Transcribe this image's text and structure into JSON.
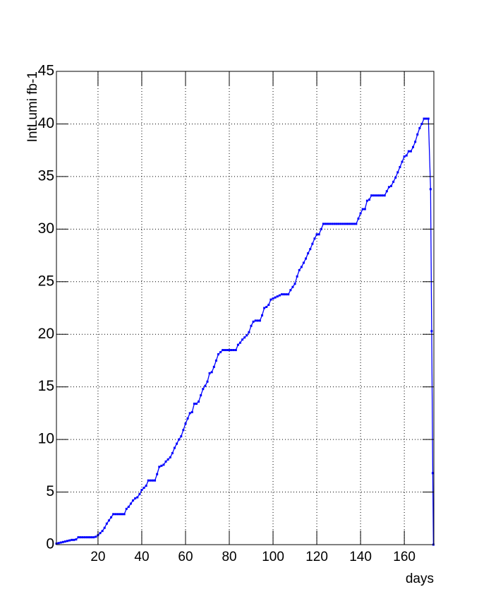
{
  "chart_data": {
    "type": "line",
    "x_label": "days",
    "y_label": "IntLumi fb-1",
    "xlim": [
      1,
      173.5
    ],
    "ylim": [
      0,
      45
    ],
    "xticks": [
      20,
      40,
      60,
      80,
      100,
      120,
      140,
      160
    ],
    "yticks": [
      0,
      5,
      10,
      15,
      20,
      25,
      30,
      35,
      40,
      45
    ],
    "grid": true,
    "series": [
      {
        "color": "#0000ff",
        "x": [
          1,
          2,
          3,
          4,
          5,
          6,
          7,
          8,
          9,
          10,
          11,
          12,
          13,
          14,
          15,
          16,
          17,
          18,
          19,
          20,
          21,
          22,
          23,
          24,
          25,
          26,
          27,
          28,
          29,
          30,
          31,
          32,
          33,
          34,
          35,
          36,
          37,
          38,
          39,
          40,
          41,
          42,
          43,
          44,
          45,
          46,
          47,
          48,
          49,
          50,
          51,
          52,
          53,
          54,
          55,
          56,
          57,
          58,
          59,
          60,
          61,
          62,
          63,
          64,
          65,
          66,
          67,
          68,
          69,
          70,
          71,
          72,
          73,
          74,
          75,
          76,
          77,
          78,
          79,
          80,
          81,
          82,
          83,
          84,
          85,
          86,
          87,
          88,
          89,
          90,
          91,
          92,
          93,
          94,
          95,
          96,
          97,
          98,
          99,
          100,
          101,
          102,
          103,
          104,
          105,
          106,
          107,
          108,
          109,
          110,
          111,
          112,
          113,
          114,
          115,
          116,
          117,
          118,
          119,
          120,
          121,
          122,
          123,
          124,
          125,
          126,
          127,
          128,
          129,
          130,
          131,
          132,
          133,
          134,
          135,
          136,
          137,
          138,
          139,
          140,
          141,
          142,
          143,
          144,
          145,
          146,
          147,
          148,
          149,
          150,
          151,
          152,
          153,
          154,
          155,
          156,
          157,
          158,
          159,
          160,
          161,
          162,
          163,
          164,
          165,
          166,
          167,
          168,
          169,
          170,
          171,
          172,
          172.5,
          173,
          173.3
        ],
        "values": [
          0.1,
          0.15,
          0.2,
          0.25,
          0.3,
          0.35,
          0.4,
          0.45,
          0.45,
          0.5,
          0.7,
          0.7,
          0.7,
          0.7,
          0.7,
          0.7,
          0.7,
          0.7,
          0.75,
          0.9,
          1.1,
          1.3,
          1.6,
          2.0,
          2.3,
          2.6,
          2.9,
          2.9,
          2.9,
          2.9,
          2.9,
          2.9,
          3.4,
          3.6,
          3.9,
          4.2,
          4.4,
          4.5,
          4.8,
          5.2,
          5.4,
          5.6,
          6.1,
          6.1,
          6.1,
          6.1,
          6.7,
          7.4,
          7.5,
          7.6,
          7.9,
          8.1,
          8.3,
          8.7,
          9.2,
          9.6,
          10.0,
          10.3,
          10.9,
          11.5,
          12.0,
          12.5,
          12.6,
          13.4,
          13.4,
          13.6,
          14.2,
          14.8,
          15.1,
          15.5,
          16.3,
          16.4,
          16.9,
          17.5,
          18.1,
          18.3,
          18.5,
          18.5,
          18.5,
          18.5,
          18.5,
          18.5,
          18.5,
          19.0,
          19.2,
          19.5,
          19.7,
          19.9,
          20.2,
          20.8,
          21.2,
          21.3,
          21.3,
          21.3,
          21.8,
          22.5,
          22.6,
          22.8,
          23.3,
          23.4,
          23.5,
          23.6,
          23.7,
          23.8,
          23.8,
          23.8,
          23.8,
          24.2,
          24.5,
          24.8,
          25.5,
          26.1,
          26.4,
          26.8,
          27.2,
          27.7,
          28.1,
          28.6,
          29.1,
          29.5,
          29.5,
          30.0,
          30.5,
          30.5,
          30.5,
          30.5,
          30.5,
          30.5,
          30.5,
          30.5,
          30.5,
          30.5,
          30.5,
          30.5,
          30.5,
          30.5,
          30.5,
          30.5,
          31.0,
          31.5,
          31.9,
          31.9,
          32.7,
          32.8,
          33.2,
          33.2,
          33.2,
          33.2,
          33.2,
          33.2,
          33.2,
          33.6,
          34.0,
          34.1,
          34.5,
          34.9,
          35.4,
          35.9,
          36.4,
          36.9,
          37.0,
          37.4,
          37.4,
          37.8,
          38.3,
          39.0,
          39.6,
          40.0,
          40.5,
          40.5,
          40.5,
          33.8,
          20.3,
          6.8,
          0
        ]
      }
    ]
  }
}
